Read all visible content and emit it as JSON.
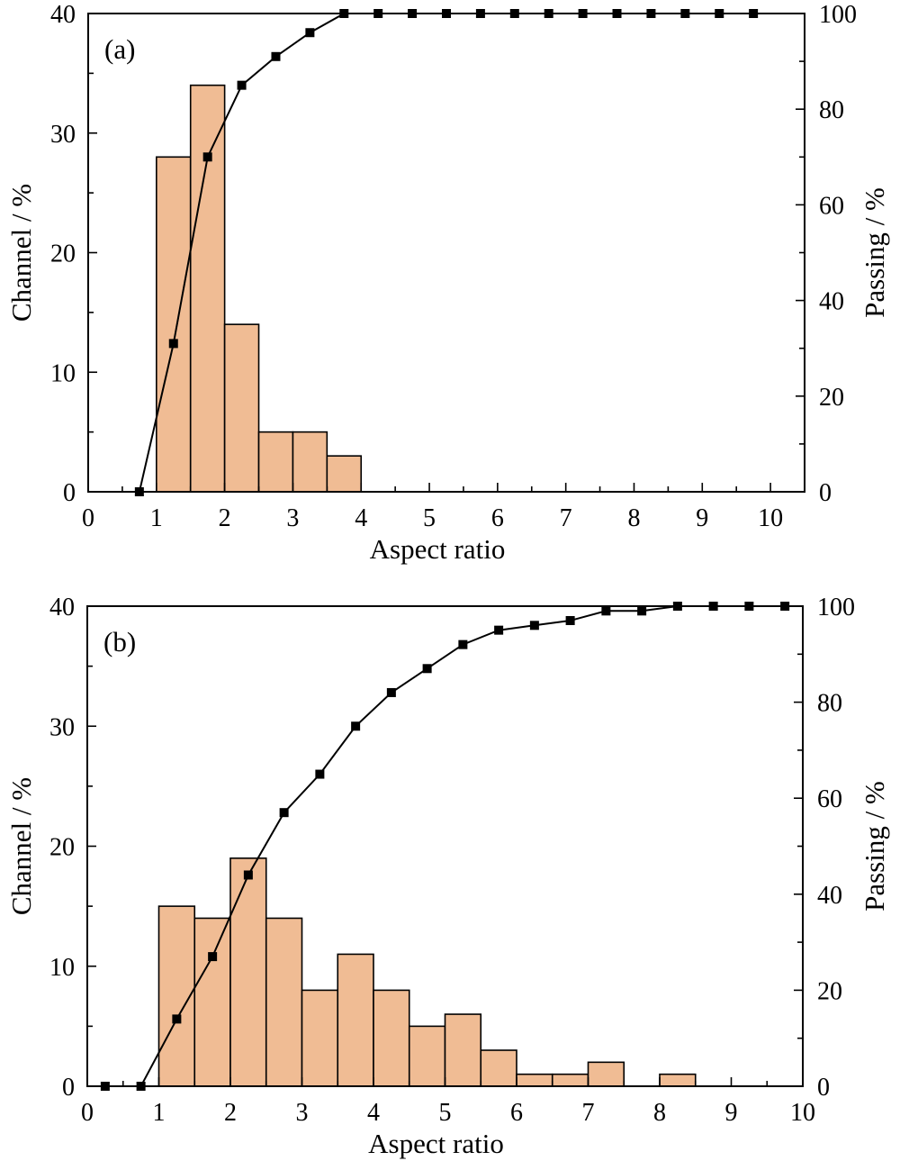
{
  "chart_data": [
    {
      "type": "bar",
      "panel_label": "(a)",
      "xlabel": "Aspect ratio",
      "ylabel": "Channel / %",
      "y2label": "Passing / %",
      "xlim": [
        0,
        10.5
      ],
      "ylim": [
        0,
        40
      ],
      "y2lim": [
        0,
        100
      ],
      "xticks": [
        0,
        1,
        2,
        3,
        4,
        5,
        6,
        7,
        8,
        9,
        10
      ],
      "yticks": [
        0,
        10,
        20,
        30,
        40
      ],
      "y2ticks": [
        0,
        20,
        40,
        60,
        80,
        100
      ],
      "bin_width": 0.5,
      "bins": [
        {
          "start": 1.0,
          "value": 28
        },
        {
          "start": 1.5,
          "value": 34
        },
        {
          "start": 2.0,
          "value": 14
        },
        {
          "start": 2.5,
          "value": 5
        },
        {
          "start": 3.0,
          "value": 5
        },
        {
          "start": 3.5,
          "value": 3
        }
      ],
      "cumulative": {
        "x": [
          0.75,
          1.25,
          1.75,
          2.25,
          2.75,
          3.25,
          3.75,
          4.25,
          4.75,
          5.25,
          5.75,
          6.25,
          6.75,
          7.25,
          7.75,
          8.25,
          8.75,
          9.25,
          9.75
        ],
        "y": [
          0,
          31,
          70,
          85,
          91,
          96,
          100,
          100,
          100,
          100,
          100,
          100,
          100,
          100,
          100,
          100,
          100,
          100,
          100
        ]
      }
    },
    {
      "type": "bar",
      "panel_label": "(b)",
      "xlabel": "Aspect ratio",
      "ylabel": "Channel / %",
      "y2label": "Passing / %",
      "xlim": [
        0,
        10
      ],
      "ylim": [
        0,
        40
      ],
      "y2lim": [
        0,
        100
      ],
      "xticks": [
        0,
        1,
        2,
        3,
        4,
        5,
        6,
        7,
        8,
        9,
        10
      ],
      "yticks": [
        0,
        10,
        20,
        30,
        40
      ],
      "y2ticks": [
        0,
        20,
        40,
        60,
        80,
        100
      ],
      "bin_width": 0.5,
      "bins": [
        {
          "start": 1.0,
          "value": 15
        },
        {
          "start": 1.5,
          "value": 14
        },
        {
          "start": 2.0,
          "value": 19
        },
        {
          "start": 2.5,
          "value": 14
        },
        {
          "start": 3.0,
          "value": 8
        },
        {
          "start": 3.5,
          "value": 11
        },
        {
          "start": 4.0,
          "value": 8
        },
        {
          "start": 4.5,
          "value": 5
        },
        {
          "start": 5.0,
          "value": 6
        },
        {
          "start": 5.5,
          "value": 3
        },
        {
          "start": 6.0,
          "value": 1
        },
        {
          "start": 6.5,
          "value": 1
        },
        {
          "start": 7.0,
          "value": 2
        },
        {
          "start": 8.0,
          "value": 1
        }
      ],
      "cumulative": {
        "x": [
          0.25,
          0.75,
          1.25,
          1.75,
          2.25,
          2.75,
          3.25,
          3.75,
          4.25,
          4.75,
          5.25,
          5.75,
          6.25,
          6.75,
          7.25,
          7.75,
          8.25,
          8.75,
          9.25,
          9.75
        ],
        "y": [
          0,
          0,
          14,
          27,
          44,
          57,
          65,
          75,
          82,
          87,
          92,
          95,
          96,
          97,
          99,
          99,
          100,
          100,
          100,
          100
        ]
      }
    }
  ]
}
